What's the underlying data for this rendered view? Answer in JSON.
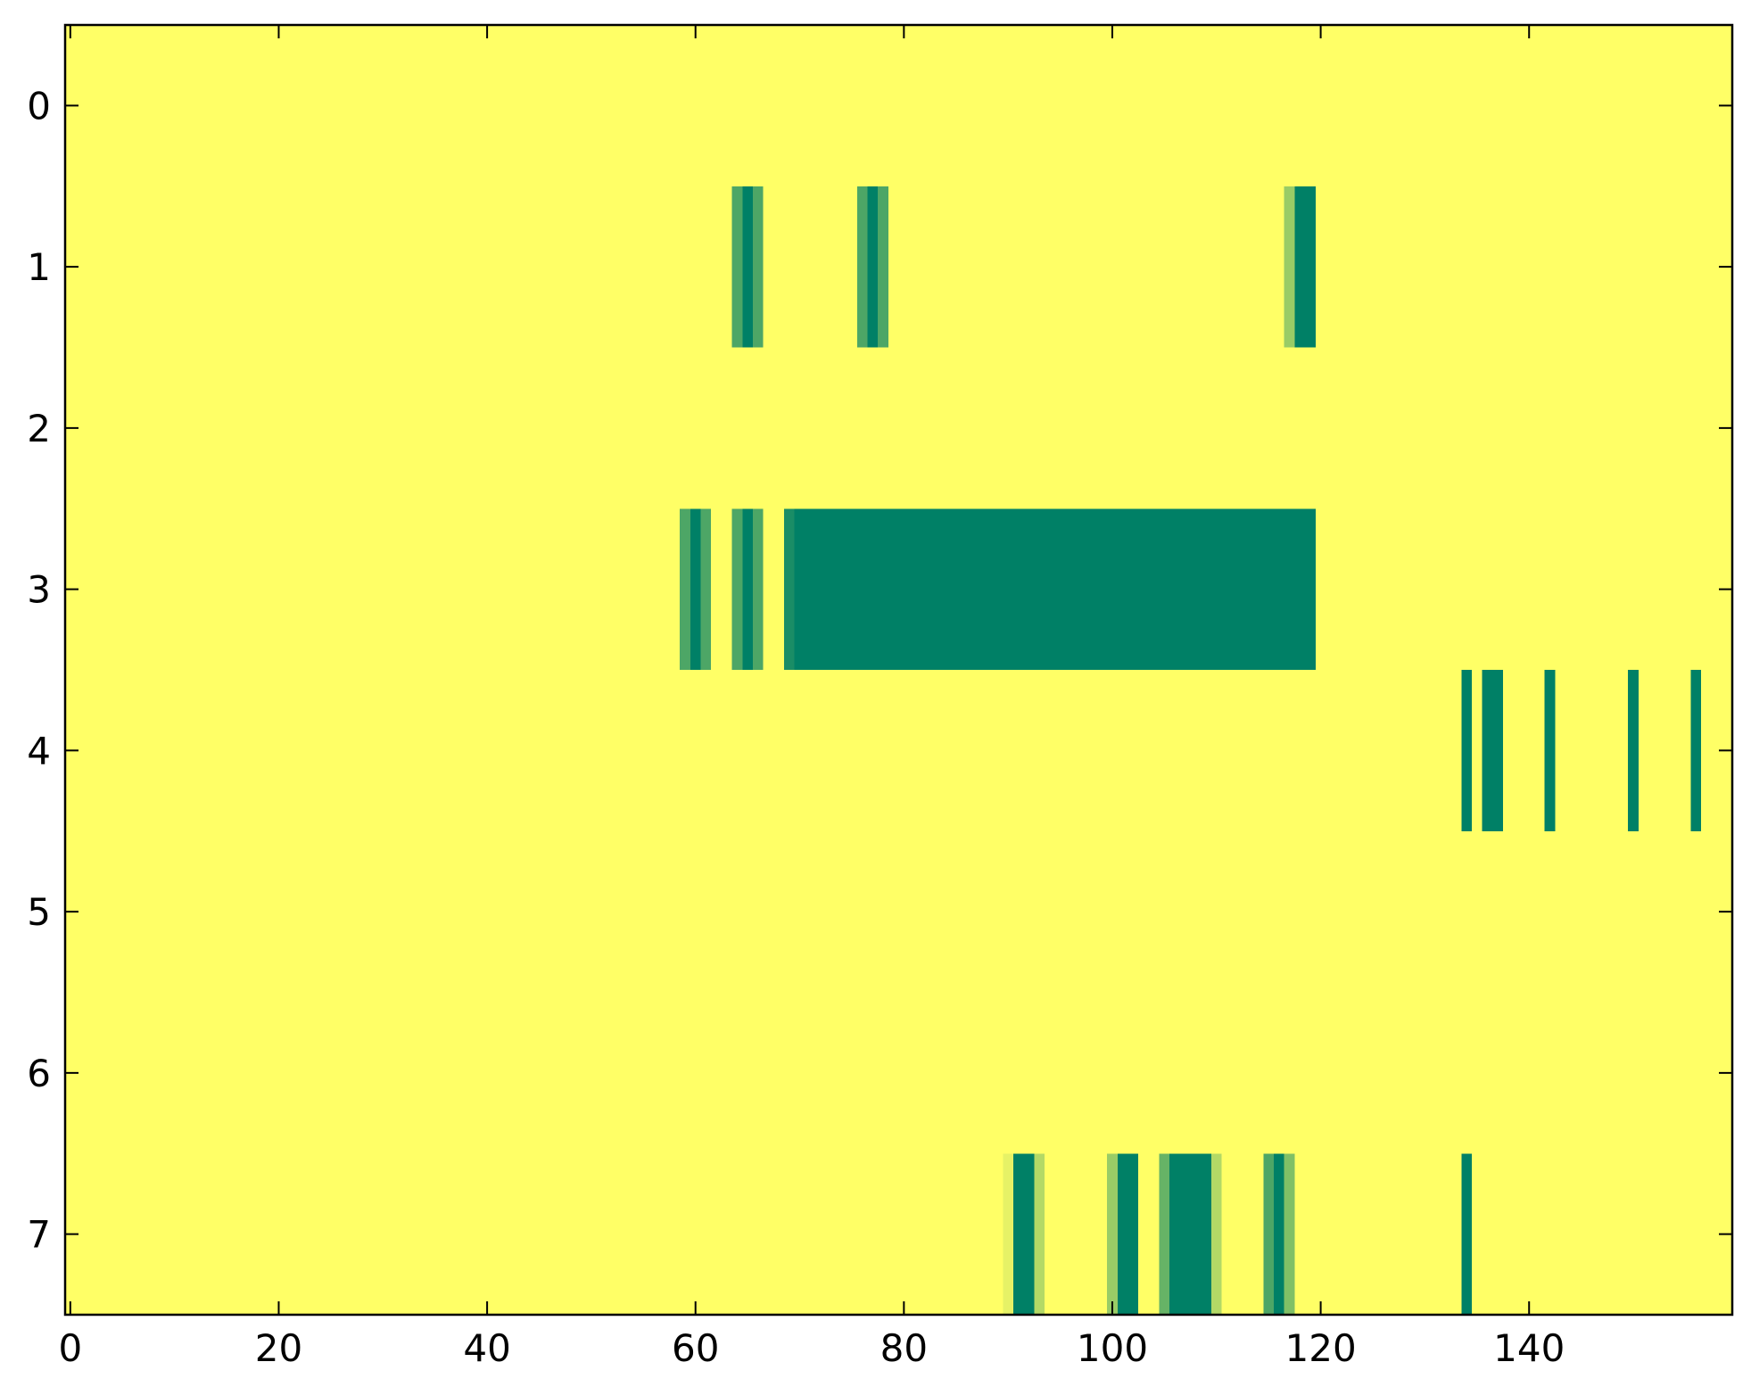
{
  "chart_data": {
    "type": "heatmap",
    "colors": [
      "#ffff66",
      "#008066"
    ],
    "xlim": [
      -0.5,
      159.5
    ],
    "ylim": [
      7.5,
      -0.5
    ],
    "xticks": [
      0,
      20,
      40,
      60,
      80,
      100,
      120,
      140
    ],
    "yticks": [
      0,
      1,
      2,
      3,
      4,
      5,
      6,
      7
    ],
    "values": [
      [
        0,
        0,
        0,
        0,
        0,
        0,
        0,
        0,
        0,
        0,
        0,
        0,
        0,
        0,
        0,
        0,
        0,
        0,
        0,
        0,
        0,
        0,
        0,
        0,
        0,
        0,
        0,
        0,
        0,
        0,
        0,
        0,
        0,
        0,
        0,
        0,
        0,
        0,
        0,
        0,
        0,
        0,
        0,
        0,
        0,
        0,
        0,
        0,
        0,
        0,
        0,
        0,
        0,
        0,
        0,
        0,
        0,
        0,
        0,
        0,
        0,
        0,
        0,
        0,
        0,
        0,
        0,
        0,
        0,
        0,
        0,
        0,
        0,
        0,
        0,
        0,
        0,
        0,
        0,
        0,
        0,
        0,
        0,
        0,
        0,
        0,
        0,
        0,
        0,
        0,
        0,
        0,
        0,
        0,
        0,
        0,
        0,
        0,
        0,
        0,
        0,
        0,
        0,
        0,
        0,
        0,
        0,
        0,
        0,
        0,
        0,
        0,
        0,
        0,
        0,
        0,
        0,
        0,
        0,
        0,
        0,
        0,
        0,
        0,
        0,
        0,
        0,
        0,
        0,
        0,
        0,
        0,
        0,
        0,
        0,
        0,
        0,
        0,
        0,
        0,
        0,
        0,
        0,
        0,
        0,
        0,
        0,
        0,
        0,
        0,
        0,
        0,
        0,
        0,
        0,
        0,
        0,
        0,
        0,
        0
      ],
      [
        0,
        0,
        0,
        0,
        0,
        0,
        0,
        0,
        0,
        0,
        0,
        0,
        0,
        0,
        0,
        0,
        0,
        0,
        0,
        0,
        0,
        0,
        0,
        0,
        0,
        0,
        0,
        0,
        0,
        0,
        0,
        0,
        0,
        0,
        0,
        0,
        0,
        0,
        0,
        0,
        0,
        0,
        0,
        0,
        0,
        0,
        0,
        0,
        0,
        0,
        0,
        0,
        0,
        0,
        0,
        0,
        0,
        0,
        0,
        0,
        0,
        0,
        0,
        0,
        0.7,
        1,
        0.7,
        0,
        0,
        0,
        0,
        0,
        0,
        0,
        0,
        0,
        0.7,
        1,
        0.7,
        0,
        0,
        0,
        0,
        0,
        0,
        0,
        0,
        0,
        0,
        0,
        0,
        0,
        0,
        0,
        0,
        0,
        0,
        0,
        0,
        0,
        0,
        0,
        0,
        0,
        0,
        0,
        0,
        0,
        0,
        0,
        0,
        0,
        0,
        0,
        0,
        0,
        0,
        0.4,
        1,
        1,
        0,
        0,
        0,
        0,
        0,
        0,
        0,
        0,
        0,
        0,
        0,
        0,
        0,
        0,
        0,
        0,
        0,
        0,
        0,
        0,
        0,
        0,
        0,
        0,
        0,
        0,
        0,
        0,
        0,
        0,
        0,
        0,
        0,
        0,
        0,
        0,
        0,
        0,
        0,
        0
      ],
      [
        0,
        0,
        0,
        0,
        0,
        0,
        0,
        0,
        0,
        0,
        0,
        0,
        0,
        0,
        0,
        0,
        0,
        0,
        0,
        0,
        0,
        0,
        0,
        0,
        0,
        0,
        0,
        0,
        0,
        0,
        0,
        0,
        0,
        0,
        0,
        0,
        0,
        0,
        0,
        0,
        0,
        0,
        0,
        0,
        0,
        0,
        0,
        0,
        0,
        0,
        0,
        0,
        0,
        0,
        0,
        0,
        0,
        0,
        0,
        0,
        0,
        0,
        0,
        0,
        0,
        0,
        0,
        0,
        0,
        0,
        0,
        0,
        0,
        0,
        0,
        0,
        0,
        0,
        0,
        0,
        0,
        0,
        0,
        0,
        0,
        0,
        0,
        0,
        0,
        0,
        0,
        0,
        0,
        0,
        0,
        0,
        0,
        0,
        0,
        0,
        0,
        0,
        0,
        0,
        0,
        0,
        0,
        0,
        0,
        0,
        0,
        0,
        0,
        0,
        0,
        0,
        0,
        0,
        0,
        0,
        0,
        0,
        0,
        0,
        0,
        0,
        0,
        0,
        0,
        0,
        0,
        0,
        0,
        0,
        0,
        0,
        0,
        0,
        0,
        0,
        0,
        0,
        0,
        0,
        0,
        0,
        0,
        0,
        0,
        0,
        0,
        0,
        0,
        0,
        0,
        0,
        0,
        0,
        0,
        0
      ],
      [
        0,
        0,
        0,
        0,
        0,
        0,
        0,
        0,
        0,
        0,
        0,
        0,
        0,
        0,
        0,
        0,
        0,
        0,
        0,
        0,
        0,
        0,
        0,
        0,
        0,
        0,
        0,
        0,
        0,
        0,
        0,
        0,
        0,
        0,
        0,
        0,
        0,
        0,
        0,
        0,
        0,
        0,
        0,
        0,
        0,
        0,
        0,
        0,
        0,
        0,
        0,
        0,
        0,
        0,
        0,
        0,
        0,
        0,
        0,
        0.7,
        1,
        0.7,
        0,
        0,
        0.7,
        1,
        0.7,
        0,
        0,
        0.9,
        1,
        1,
        1,
        1,
        1,
        1,
        1,
        1,
        1,
        1,
        1,
        1,
        1,
        1,
        1,
        1,
        1,
        1,
        1,
        1,
        1,
        1,
        1,
        1,
        1,
        1,
        1,
        1,
        1,
        1,
        1,
        1,
        1,
        1,
        1,
        1,
        1,
        1,
        1,
        1,
        1,
        1,
        1,
        1,
        1,
        1,
        1,
        1,
        1,
        1,
        0,
        0,
        0,
        0,
        0,
        0,
        0,
        0,
        0,
        0,
        0,
        0,
        0,
        0,
        0,
        0,
        0,
        0,
        0,
        0,
        0,
        0,
        0,
        0,
        0,
        0,
        0,
        0,
        0,
        0,
        0,
        0,
        0,
        0,
        0,
        0,
        0,
        0,
        0,
        0
      ],
      [
        0,
        0,
        0,
        0,
        0,
        0,
        0,
        0,
        0,
        0,
        0,
        0,
        0,
        0,
        0,
        0,
        0,
        0,
        0,
        0,
        0,
        0,
        0,
        0,
        0,
        0,
        0,
        0,
        0,
        0,
        0,
        0,
        0,
        0,
        0,
        0,
        0,
        0,
        0,
        0,
        0,
        0,
        0,
        0,
        0,
        0,
        0,
        0,
        0,
        0,
        0,
        0,
        0,
        0,
        0,
        0,
        0,
        0,
        0,
        0,
        0,
        0,
        0,
        0,
        0,
        0,
        0,
        0,
        0,
        0,
        0,
        0,
        0,
        0,
        0,
        0,
        0,
        0,
        0,
        0,
        0,
        0,
        0,
        0,
        0,
        0,
        0,
        0,
        0,
        0,
        0,
        0,
        0,
        0,
        0,
        0,
        0,
        0,
        0,
        0,
        0,
        0,
        0,
        0,
        0,
        0,
        0,
        0,
        0,
        0,
        0,
        0,
        0,
        0,
        0,
        0,
        0,
        0,
        0,
        0,
        0,
        0,
        0,
        0,
        0,
        0,
        0,
        0,
        0,
        0,
        0,
        0,
        0,
        0,
        1,
        0,
        1,
        1,
        0,
        0,
        0,
        0,
        1,
        0,
        0,
        0,
        0,
        0,
        0,
        0,
        1,
        0,
        0,
        0,
        0,
        0,
        1,
        0,
        0,
        0
      ],
      [
        0,
        0,
        0,
        0,
        0,
        0,
        0,
        0,
        0,
        0,
        0,
        0,
        0,
        0,
        0,
        0,
        0,
        0,
        0,
        0,
        0,
        0,
        0,
        0,
        0,
        0,
        0,
        0,
        0,
        0,
        0,
        0,
        0,
        0,
        0,
        0,
        0,
        0,
        0,
        0,
        0,
        0,
        0,
        0,
        0,
        0,
        0,
        0,
        0,
        0,
        0,
        0,
        0,
        0,
        0,
        0,
        0,
        0,
        0,
        0,
        0,
        0,
        0,
        0,
        0,
        0,
        0,
        0,
        0,
        0,
        0,
        0,
        0,
        0,
        0,
        0,
        0,
        0,
        0,
        0,
        0,
        0,
        0,
        0,
        0,
        0,
        0,
        0,
        0,
        0,
        0,
        0,
        0,
        0,
        0,
        0,
        0,
        0,
        0,
        0,
        0,
        0,
        0,
        0,
        0,
        0,
        0,
        0,
        0,
        0,
        0,
        0,
        0,
        0,
        0,
        0,
        0,
        0,
        0,
        0,
        0,
        0,
        0,
        0,
        0,
        0,
        0,
        0,
        0,
        0,
        0,
        0,
        0,
        0,
        0,
        0,
        0,
        0,
        0,
        0,
        0,
        0,
        0,
        0,
        0,
        0,
        0,
        0,
        0,
        0,
        0,
        0,
        0,
        0,
        0,
        0,
        0,
        0,
        0,
        0
      ],
      [
        0,
        0,
        0,
        0,
        0,
        0,
        0,
        0,
        0,
        0,
        0,
        0,
        0,
        0,
        0,
        0,
        0,
        0,
        0,
        0,
        0,
        0,
        0,
        0,
        0,
        0,
        0,
        0,
        0,
        0,
        0,
        0,
        0,
        0,
        0,
        0,
        0,
        0,
        0,
        0,
        0,
        0,
        0,
        0,
        0,
        0,
        0,
        0,
        0,
        0,
        0,
        0,
        0,
        0,
        0,
        0,
        0,
        0,
        0,
        0,
        0,
        0,
        0,
        0,
        0,
        0,
        0,
        0,
        0,
        0,
        0,
        0,
        0,
        0,
        0,
        0,
        0,
        0,
        0,
        0,
        0,
        0,
        0,
        0,
        0,
        0,
        0,
        0,
        0,
        0,
        0,
        0,
        0,
        0,
        0,
        0,
        0,
        0,
        0,
        0,
        0,
        0,
        0,
        0,
        0,
        0,
        0,
        0,
        0,
        0,
        0,
        0,
        0,
        0,
        0,
        0,
        0,
        0,
        0,
        0,
        0,
        0,
        0,
        0,
        0,
        0,
        0,
        0,
        0,
        0,
        0,
        0,
        0,
        0,
        0,
        0,
        0,
        0,
        0,
        0,
        0,
        0,
        0,
        0,
        0,
        0,
        0,
        0,
        0,
        0,
        0,
        0,
        0,
        0,
        0,
        0,
        0,
        0,
        0,
        0
      ],
      [
        0,
        0,
        0,
        0,
        0,
        0,
        0,
        0,
        0,
        0,
        0,
        0,
        0,
        0,
        0,
        0,
        0,
        0,
        0,
        0,
        0,
        0,
        0,
        0,
        0,
        0,
        0,
        0,
        0,
        0,
        0,
        0,
        0,
        0,
        0,
        0,
        0,
        0,
        0,
        0,
        0,
        0,
        0,
        0,
        0,
        0,
        0,
        0,
        0,
        0,
        0,
        0,
        0,
        0,
        0,
        0,
        0,
        0,
        0,
        0,
        0,
        0,
        0,
        0,
        0,
        0,
        0,
        0,
        0,
        0,
        0,
        0,
        0,
        0,
        0,
        0,
        0,
        0,
        0,
        0,
        0,
        0,
        0,
        0,
        0,
        0,
        0,
        0,
        0,
        0,
        0.1,
        1,
        1,
        0.3,
        0,
        0,
        0,
        0,
        0,
        0,
        0.4,
        1,
        1,
        0,
        0,
        0.6,
        1,
        1,
        1,
        1,
        0.3,
        0,
        0,
        0,
        0,
        0.7,
        1,
        0.5,
        0,
        0,
        0,
        0,
        0,
        0,
        0,
        0,
        0,
        0,
        0,
        0,
        0,
        0,
        0,
        0,
        1,
        0,
        0,
        0,
        0,
        0,
        0,
        0,
        0,
        0,
        0,
        0,
        0,
        0,
        0,
        0,
        0,
        0,
        0,
        0,
        0,
        0,
        0,
        0,
        0,
        0
      ]
    ]
  }
}
